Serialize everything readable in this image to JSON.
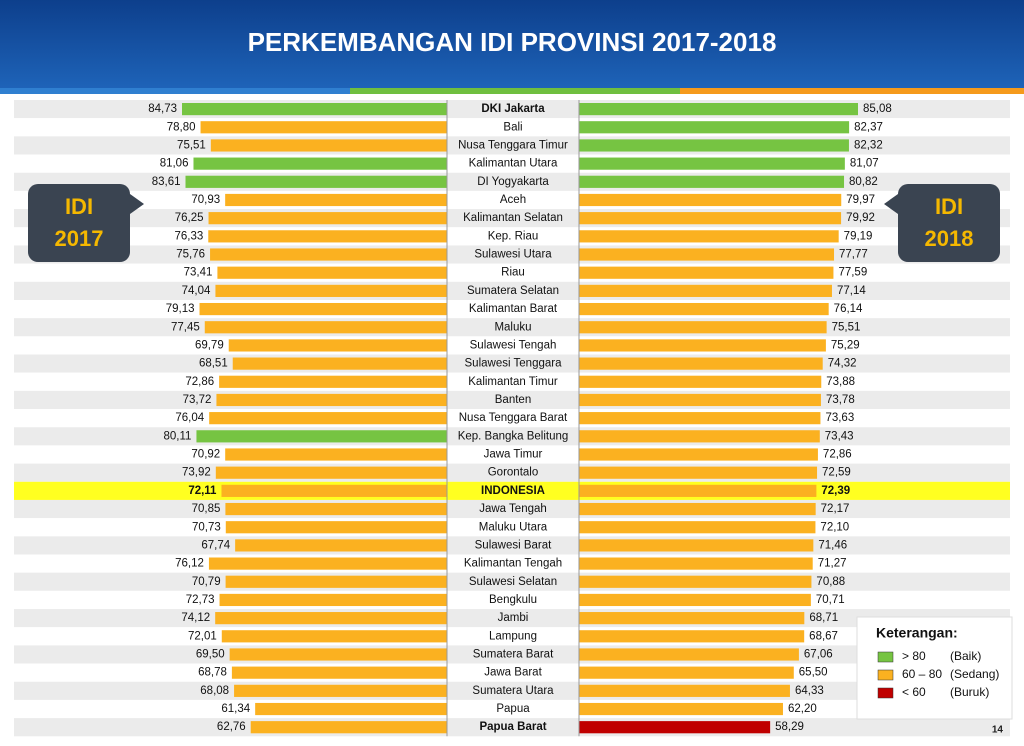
{
  "title": "PERKEMBANGAN IDI PROVINSI 2017-2018",
  "page_number": "14",
  "chart_data": {
    "type": "butterfly-bar",
    "categories": [
      "DKI Jakarta",
      "Bali",
      "Nusa Tenggara Timur",
      "Kalimantan Utara",
      "DI Yogyakarta",
      "Aceh",
      "Kalimantan Selatan",
      "Kep. Riau",
      "Sulawesi Utara",
      "Riau",
      "Sumatera Selatan",
      "Kalimantan Barat",
      "Maluku",
      "Sulawesi Tengah",
      "Sulawesi Tenggara",
      "Kalimantan Timur",
      "Banten",
      "Nusa Tenggara Barat",
      "Kep. Bangka Belitung",
      "Jawa Timur",
      "Gorontalo",
      "INDONESIA",
      "Jawa Tengah",
      "Maluku Utara",
      "Sulawesi Barat",
      "Kalimantan Tengah",
      "Sulawesi Selatan",
      "Bengkulu",
      "Jambi",
      "Lampung",
      "Sumatera Barat",
      "Jawa Barat",
      "Sumatera Utara",
      "Papua",
      "Papua Barat"
    ],
    "series": [
      {
        "name": "IDI 2017",
        "values": [
          84.73,
          78.8,
          75.51,
          81.06,
          83.61,
          70.93,
          76.25,
          76.33,
          75.76,
          73.41,
          74.04,
          79.13,
          77.45,
          69.79,
          68.51,
          72.86,
          73.72,
          76.04,
          80.11,
          70.92,
          73.92,
          72.11,
          70.85,
          70.73,
          67.74,
          76.12,
          70.79,
          72.73,
          74.12,
          72.01,
          69.5,
          68.78,
          68.08,
          61.34,
          62.76
        ],
        "value_labels": [
          "84,73",
          "78,80",
          "75,51",
          "81,06",
          "83,61",
          "70,93",
          "76,25",
          "76,33",
          "75,76",
          "73,41",
          "74,04",
          "79,13",
          "77,45",
          "69,79",
          "68,51",
          "72,86",
          "73,72",
          "76,04",
          "80,11",
          "70,92",
          "73,92",
          "72,11",
          "70,85",
          "70,73",
          "67,74",
          "76,12",
          "70,79",
          "72,73",
          "74,12",
          "72,01",
          "69,50",
          "68,78",
          "68,08",
          "61,34",
          "62,76"
        ]
      },
      {
        "name": "IDI 2018",
        "values": [
          85.08,
          82.37,
          82.32,
          81.07,
          80.82,
          79.97,
          79.92,
          79.19,
          77.77,
          77.59,
          77.14,
          76.14,
          75.51,
          75.29,
          74.32,
          73.88,
          73.78,
          73.63,
          73.43,
          72.86,
          72.59,
          72.39,
          72.17,
          72.1,
          71.46,
          71.27,
          70.88,
          70.71,
          68.71,
          68.67,
          67.06,
          65.5,
          64.33,
          62.2,
          58.29
        ],
        "value_labels": [
          "85,08",
          "82,37",
          "82,32",
          "81,07",
          "80,82",
          "79,97",
          "79,92",
          "79,19",
          "77,77",
          "77,59",
          "77,14",
          "76,14",
          "75,51",
          "75,29",
          "74,32",
          "73,88",
          "73,78",
          "73,63",
          "73,43",
          "72,86",
          "72,59",
          "72,39",
          "72,17",
          "72,10",
          "71,46",
          "71,27",
          "70,88",
          "70,71",
          "68,71",
          "68,67",
          "67,06",
          "65,50",
          "64,33",
          "62,20",
          "58,29"
        ]
      }
    ],
    "legend": {
      "title": "Keterangan:",
      "items": [
        {
          "label": "> 80",
          "note": "(Baik)",
          "color": "#76c442",
          "min": 80
        },
        {
          "label": "60 – 80",
          "note": "(Sedang)",
          "color": "#fbb120",
          "min": 60
        },
        {
          "label": "< 60",
          "note": "(Buruk)",
          "color": "#c00000",
          "min": null
        }
      ]
    }
  }
}
